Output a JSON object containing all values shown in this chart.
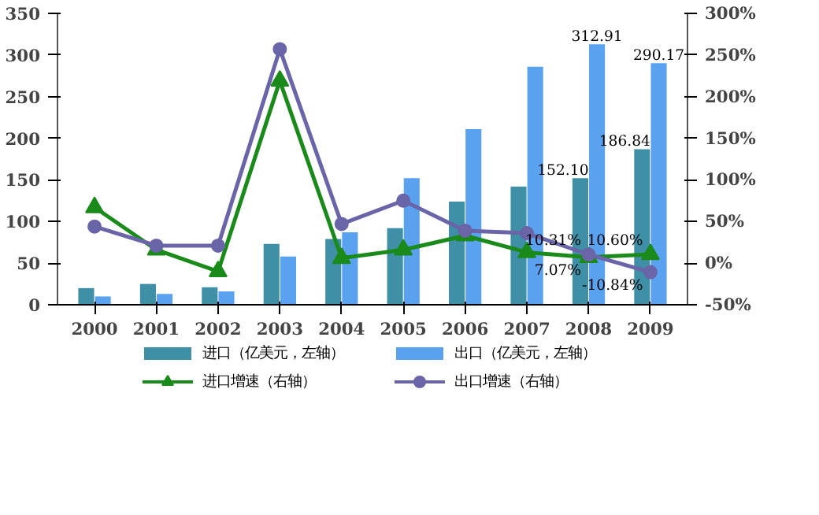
{
  "chart_data": {
    "type": "bar",
    "categories": [
      "2000",
      "2001",
      "2002",
      "2003",
      "2004",
      "2005",
      "2006",
      "2007",
      "2008",
      "2009"
    ],
    "series": [
      {
        "name": "进口（亿美元，左轴）",
        "color": "#3f8fa6",
        "values": [
          20,
          25,
          21,
          73,
          79,
          92,
          124,
          142,
          152.1,
          186.84
        ],
        "value_labels": [
          null,
          null,
          null,
          null,
          null,
          null,
          null,
          null,
          "152.10",
          "186.84"
        ]
      },
      {
        "name": "出口（亿美元，左轴）",
        "color": "#5aa2f0",
        "values": [
          10,
          13,
          16,
          58,
          87,
          152,
          211,
          286,
          312.91,
          290.17
        ],
        "value_labels": [
          null,
          null,
          null,
          null,
          null,
          null,
          null,
          null,
          "312.91",
          "290.17"
        ]
      },
      {
        "name": "进口增速（右轴）",
        "type": "line",
        "axis": "y2",
        "color": "#1a8a1a",
        "marker": "triangle",
        "values": [
          67,
          16,
          -10,
          219,
          6,
          16,
          33,
          13,
          7.07,
          10.6
        ],
        "value_labels": [
          null,
          null,
          null,
          null,
          null,
          null,
          null,
          null,
          "7.07%",
          "10.60%"
        ]
      },
      {
        "name": "出口增速（右轴）",
        "type": "line",
        "axis": "y2",
        "color": "#6a64a8",
        "marker": "circle",
        "values": [
          44,
          21,
          21,
          257,
          47,
          75,
          39,
          36,
          10.31,
          -10.84
        ],
        "value_labels": [
          null,
          null,
          null,
          null,
          null,
          null,
          null,
          null,
          "10.31%",
          "-10.84%"
        ]
      }
    ],
    "ylim": [
      0,
      350
    ],
    "yticks": [
      0,
      50,
      100,
      150,
      200,
      250,
      300,
      350
    ],
    "y2lim": [
      -50,
      300
    ],
    "y2ticks": [
      {
        "value": -50,
        "label": "-50%"
      },
      {
        "value": 0,
        "label": "0%"
      },
      {
        "value": 50,
        "label": "50%"
      },
      {
        "value": 100,
        "label": "100%"
      },
      {
        "value": 150,
        "label": "150%"
      },
      {
        "value": 200,
        "label": "200%"
      },
      {
        "value": 250,
        "label": "250%"
      },
      {
        "value": 300,
        "label": "300%"
      }
    ],
    "grid": false,
    "legend": "bottom"
  }
}
